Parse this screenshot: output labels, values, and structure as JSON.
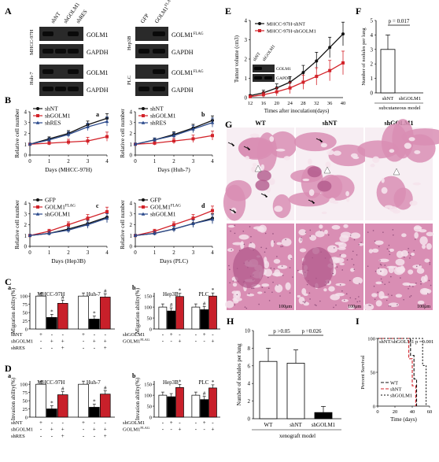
{
  "panel_letters": {
    "A": "A",
    "B": "B",
    "C": "C",
    "D": "D",
    "E": "E",
    "F": "F",
    "G": "G",
    "H": "H",
    "I": "I"
  },
  "blots": {
    "left_cols": [
      "shNT",
      "shGOLM1",
      "shRES"
    ],
    "right_cols": [
      "GFP",
      "GOLM1FLAG"
    ],
    "cells_left": [
      "MHCC-97H",
      "Huh-7"
    ],
    "cells_right": [
      "Hep3B",
      "PLC"
    ],
    "bands_left": [
      "GOLM1",
      "GAPDH"
    ],
    "bands_right": [
      "GOLM1",
      "GAPDH"
    ]
  },
  "flag_sup": "FLAG",
  "strings": {
    "relative_cell_number": "Relative cell number",
    "days": "Days",
    "migration": "Migration ability(%)",
    "invasion": "Invasion ability(%)",
    "tumor_volume": "Tumor volume (cm3)",
    "times_after": "Times after inoculation(days)",
    "nodules_per_lung": "Number of nodules per lung",
    "subcutaneous": "subcutaneous model",
    "xenograft": "xenograft model",
    "percent_survival": "Percent Survival",
    "time_days": "Time (days)",
    "scale_bar": "100μm",
    "star": "*",
    "hash": "#",
    "plus": "+",
    "minus": "-"
  },
  "histology": {
    "columns": [
      "WT",
      "shNT",
      "shGOLM1"
    ],
    "colors": {
      "tissue": "#d98eb4",
      "dark": "#b25a8c",
      "space": "#f5e3ec",
      "bg": "#f7eef3"
    }
  },
  "colors": {
    "black": "#111111",
    "red": "#d3232a",
    "blue": "#2b4a8c",
    "gray": "#888888"
  },
  "chart_data": [
    {
      "id": "Ba",
      "type": "line",
      "title": "a",
      "xlabel": "Days  (MHCC-97H)",
      "ylabel": "Relative cell number",
      "x": [
        0,
        1,
        2,
        3,
        4
      ],
      "ylim": [
        0,
        4
      ],
      "series": [
        {
          "name": "shNT",
          "color": "black",
          "values": [
            1,
            1.5,
            2,
            2.8,
            3.4
          ]
        },
        {
          "name": "shGOLM1",
          "color": "red",
          "values": [
            1,
            1.1,
            1.2,
            1.3,
            1.7
          ]
        },
        {
          "name": "shRES",
          "color": "blue",
          "values": [
            1,
            1.4,
            1.9,
            2.6,
            3.1
          ]
        }
      ]
    },
    {
      "id": "Bb",
      "type": "line",
      "title": "b",
      "xlabel": "Days  (Huh-7)",
      "ylabel": "Relative cell number",
      "x": [
        0,
        1,
        2,
        3,
        4
      ],
      "ylim": [
        0,
        4
      ],
      "series": [
        {
          "name": "shNT",
          "color": "black",
          "values": [
            1,
            1.4,
            1.9,
            2.5,
            3.2
          ]
        },
        {
          "name": "shGOLM1",
          "color": "red",
          "values": [
            1,
            1.1,
            1.3,
            1.5,
            1.8
          ]
        },
        {
          "name": "shRES",
          "color": "blue",
          "values": [
            1,
            1.4,
            1.8,
            2.4,
            3
          ]
        }
      ]
    },
    {
      "id": "Bc",
      "type": "line",
      "title": "c",
      "xlabel": "Days  (Hep3B)",
      "ylabel": "Relative cell number",
      "x": [
        0,
        1,
        2,
        3,
        4
      ],
      "ylim": [
        0,
        4
      ],
      "series": [
        {
          "name": "GFP",
          "color": "black",
          "values": [
            1,
            1.2,
            1.6,
            2.1,
            2.7
          ]
        },
        {
          "name": "GOLM1FLAG",
          "color": "red",
          "values": [
            1,
            1.4,
            2,
            2.6,
            3.2
          ]
        },
        {
          "name": "shGOLM1",
          "color": "blue",
          "values": [
            1,
            1.2,
            1.5,
            2,
            2.6
          ]
        }
      ]
    },
    {
      "id": "Bd",
      "type": "line",
      "title": "d",
      "xlabel": "Days  (PLC)",
      "ylabel": "Relative cell number",
      "x": [
        0,
        1,
        2,
        3,
        4
      ],
      "ylim": [
        0,
        4
      ],
      "series": [
        {
          "name": "GFP",
          "color": "black",
          "values": [
            1,
            1.2,
            1.6,
            2.1,
            2.6
          ]
        },
        {
          "name": "GOLM1FLAG",
          "color": "red",
          "values": [
            1,
            1.4,
            2,
            2.6,
            3.3
          ]
        },
        {
          "name": "shGOLM1",
          "color": "blue",
          "values": [
            1,
            1.2,
            1.6,
            2.1,
            2.5
          ]
        }
      ]
    },
    {
      "id": "Ca",
      "type": "bar",
      "title": "a",
      "ylabel": "Migration ability(%)",
      "groups": [
        "MHCC-97H",
        "Huh-7"
      ],
      "yticks": [
        0,
        25,
        50,
        75,
        100
      ],
      "ylim": [
        0,
        110
      ],
      "values": [
        [
          100,
          35,
          78
        ],
        [
          100,
          30,
          97
        ]
      ],
      "annot": [
        [
          "",
          "*",
          "#"
        ],
        [
          "",
          "*",
          "#"
        ]
      ],
      "conditions": {
        "shNT": [
          "+",
          "-",
          "-"
        ],
        "shGOLM1": [
          "-",
          "+",
          "+"
        ],
        "shRES": [
          "-",
          "-",
          "+"
        ]
      }
    },
    {
      "id": "Cb",
      "type": "bar",
      "title": "b",
      "ylabel": "Migration ability(%)",
      "groups": [
        "Hep3B",
        "PLC"
      ],
      "yticks": [
        0,
        50,
        100,
        150
      ],
      "ylim": [
        0,
        165
      ],
      "values": [
        [
          100,
          82,
          148
        ],
        [
          100,
          88,
          150
        ]
      ],
      "annot": [
        [
          "",
          "#",
          "*"
        ],
        [
          "",
          "#",
          "*"
        ]
      ],
      "conditions": {
        "shGOLM1": [
          "-",
          "+",
          "-"
        ],
        "GOLM1FLAG": [
          "-",
          "-",
          "+"
        ]
      }
    },
    {
      "id": "Da",
      "type": "bar",
      "title": "a",
      "ylabel": "Invasion ability(%)",
      "groups": [
        "MHCC-97H",
        "Huh-7"
      ],
      "yticks": [
        0,
        25,
        50,
        75,
        100
      ],
      "ylim": [
        0,
        110
      ],
      "values": [
        [
          100,
          25,
          68
        ],
        [
          100,
          30,
          70
        ]
      ],
      "annot": [
        [
          "",
          "*",
          "#"
        ],
        [
          "",
          "*",
          "#"
        ]
      ],
      "conditions": {
        "shNT": [
          "+",
          "-",
          "-"
        ],
        "shGOLM1": [
          "-",
          "+",
          "+"
        ],
        "shRES": [
          "-",
          "-",
          "+"
        ]
      }
    },
    {
      "id": "Db",
      "type": "bar",
      "title": "b",
      "ylabel": "Invasion ability(%)",
      "groups": [
        "Hep3B",
        "PLC"
      ],
      "yticks": [
        0,
        50,
        100,
        150
      ],
      "ylim": [
        0,
        165
      ],
      "values": [
        [
          100,
          93,
          135
        ],
        [
          100,
          80,
          133
        ]
      ],
      "annot": [
        [
          "",
          "",
          "*"
        ],
        [
          "",
          "#",
          "*"
        ]
      ],
      "conditions": {
        "shGOLM1": [
          "-",
          "+",
          "-"
        ],
        "GOLM1FLAG": [
          "-",
          "-",
          "+"
        ]
      }
    },
    {
      "id": "E",
      "type": "line",
      "ylabel": "Tumor volume (cm3)",
      "xlabel": "Times after inoculation(days)",
      "x": [
        12,
        16,
        20,
        24,
        28,
        32,
        36,
        40
      ],
      "ylim": [
        0,
        4
      ],
      "yticks": [
        0,
        1,
        2,
        3,
        4
      ],
      "series": [
        {
          "name": "MHCC-97H-shNT",
          "color": "black",
          "values": [
            0.1,
            0.25,
            0.5,
            0.8,
            1.3,
            1.9,
            2.6,
            3.3
          ]
        },
        {
          "name": "MHCC-97H-shGOLM1",
          "color": "red",
          "values": [
            0.05,
            0.15,
            0.3,
            0.5,
            0.8,
            1.1,
            1.4,
            1.8
          ]
        }
      ],
      "inset": {
        "cols": [
          "shNT",
          "shGOLM1"
        ],
        "bands": [
          "GOLM1",
          "GAPDH"
        ]
      }
    },
    {
      "id": "F",
      "type": "bar",
      "ylabel": "Number of nodules per lung",
      "categories": [
        "shNT",
        "shGOLM1"
      ],
      "values": [
        3,
        0
      ],
      "ylim": [
        0,
        5
      ],
      "yticks": [
        0,
        1,
        2,
        3,
        4,
        5
      ],
      "pvalue": "p = 0.017",
      "xlabel": "subcutaneous model"
    },
    {
      "id": "H",
      "type": "bar",
      "ylabel": "Number of nodules per lung",
      "categories": [
        "WT",
        "shNT",
        "shGOLM1"
      ],
      "values": [
        6.5,
        6.3,
        0.7
      ],
      "ylim": [
        0,
        10
      ],
      "yticks": [
        0,
        2,
        4,
        6,
        8,
        10
      ],
      "pvalues": [
        "p >0.05",
        "p =0.026"
      ],
      "xlabel": "xenograft model"
    },
    {
      "id": "I",
      "type": "line",
      "ylabel": "Percent Survival",
      "xlabel": "Time (days)",
      "title": "shNT/shGOLM1  p =0.001",
      "xticks": [
        0,
        20,
        40,
        60
      ],
      "yticks": [
        0,
        50,
        100
      ],
      "series": [
        {
          "name": "WT",
          "color": "black",
          "dash": "4,2",
          "points": [
            [
              0,
              100
            ],
            [
              38,
              100
            ],
            [
              38,
              75
            ],
            [
              42,
              75
            ],
            [
              42,
              40
            ],
            [
              45,
              40
            ],
            [
              45,
              0
            ]
          ]
        },
        {
          "name": "shNT",
          "color": "red",
          "dash": "4,2",
          "points": [
            [
              0,
              100
            ],
            [
              36,
              100
            ],
            [
              36,
              70
            ],
            [
              40,
              70
            ],
            [
              40,
              30
            ],
            [
              44,
              30
            ],
            [
              44,
              0
            ]
          ]
        },
        {
          "name": "shGOLM1",
          "color": "black",
          "dash": "2,2",
          "points": [
            [
              0,
              100
            ],
            [
              52,
              100
            ],
            [
              52,
              60
            ],
            [
              56,
              60
            ],
            [
              56,
              0
            ]
          ]
        }
      ]
    }
  ]
}
